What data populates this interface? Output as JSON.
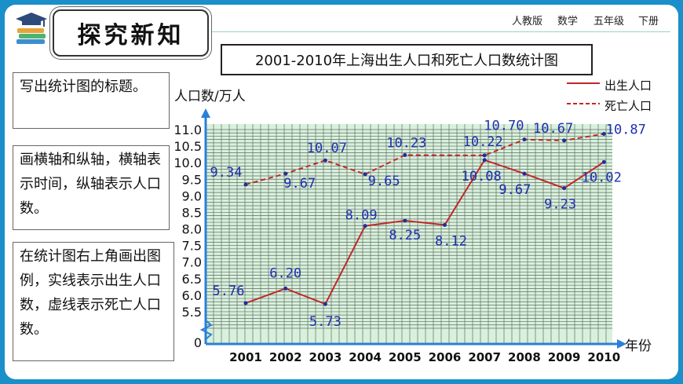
{
  "header": {
    "section_title": "探究新知",
    "publisher": "人教版",
    "subject": "数学",
    "grade": "五年级",
    "volume": "下册"
  },
  "notes": [
    "写出统计图的标题。",
    "画横轴和纵轴，横轴表示时间，纵轴表示人口数。",
    "在统计图右上角画出图例，实线表示出生人口数，虚线表示死亡人口数。"
  ],
  "colors": {
    "background": "#1a8fc9",
    "plot_area": "#d9f0dd",
    "axis": "#2a7fd8",
    "birth_line": "#c0282a",
    "death_line": "#c0282a",
    "point": "#1f2f9a",
    "data_label": "#1f2fb0"
  },
  "chart_data": {
    "type": "line",
    "title": "2001-2010年上海出生人口和死亡人口数统计图",
    "xlabel": "年份",
    "ylabel": "人口数/万人",
    "categories": [
      "2001",
      "2002",
      "2003",
      "2004",
      "2005",
      "2006",
      "2007",
      "2008",
      "2009",
      "2010"
    ],
    "y_ticks": [
      "0",
      "5.5",
      "6.0",
      "6.5",
      "7.0",
      "7.5",
      "8.0",
      "8.5",
      "9.0",
      "9.5",
      "10.0",
      "10.5",
      "11.0"
    ],
    "ylim": [
      5.0,
      11.0
    ],
    "axis_break": true,
    "grid": true,
    "legend_position": "top-right",
    "series": [
      {
        "name": "出生人口",
        "style": "solid",
        "values": [
          5.76,
          6.2,
          5.73,
          8.09,
          8.25,
          8.12,
          10.08,
          9.67,
          9.23,
          10.02
        ],
        "labels": [
          "5.76",
          "6.20",
          "5.73",
          "8.09",
          "8.25",
          "8.12",
          "10.08",
          "9.67",
          "9.23",
          "10.02"
        ]
      },
      {
        "name": "死亡人口",
        "style": "dashed",
        "values": [
          9.34,
          9.67,
          10.07,
          9.65,
          10.23,
          null,
          10.22,
          10.7,
          10.67,
          10.87
        ],
        "labels": [
          "9.34",
          "9.67",
          "10.07",
          "9.65",
          "10.23",
          "",
          "10.22",
          "10.70",
          "10.67",
          "10.87"
        ]
      }
    ]
  }
}
